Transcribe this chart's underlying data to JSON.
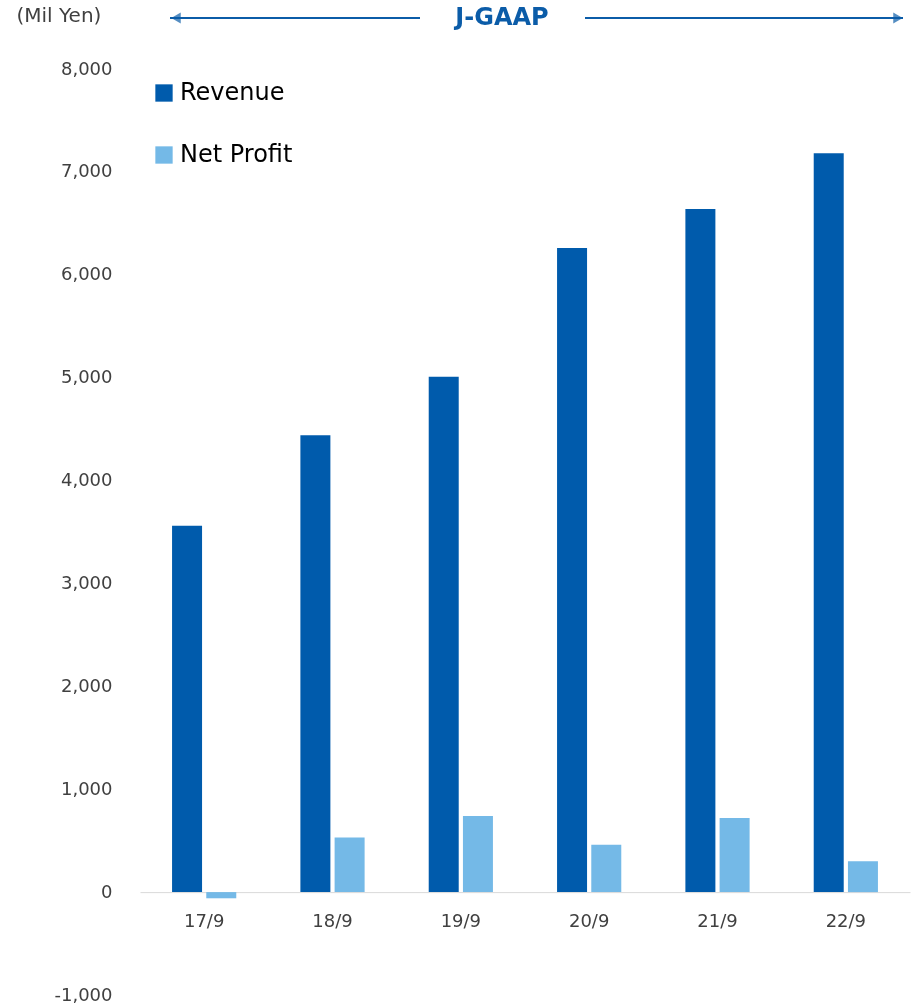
{
  "chart_data": {
    "type": "bar",
    "ylabel": "(Mil Yen)",
    "categories": [
      "17/9",
      "18/9",
      "19/9",
      "20/9",
      "21/9",
      "22/9"
    ],
    "series": [
      {
        "name": "Revenue",
        "color": "#005bac",
        "values": [
          3560,
          4440,
          5010,
          6260,
          6640,
          7180
        ]
      },
      {
        "name": "Net Profit",
        "color": "#74b9e7",
        "values": [
          -60,
          530,
          740,
          460,
          720,
          300
        ]
      }
    ],
    "ylim": [
      -1000,
      8000
    ],
    "yticks": [
      {
        "value": -1000,
        "label": "-1,000"
      },
      0,
      {
        "value": 1000,
        "label": "1,000"
      },
      {
        "value": 2000,
        "label": "2,000"
      },
      {
        "value": 3000,
        "label": "3,000"
      },
      {
        "value": 4000,
        "label": "4,000"
      },
      {
        "value": 5000,
        "label": "5,000"
      },
      {
        "value": 6000,
        "label": "6,000"
      },
      {
        "value": 7000,
        "label": "7,000"
      },
      {
        "value": 8000,
        "label": "8,000"
      }
    ],
    "grid": false,
    "legend": "top left",
    "annotations": [
      "J-GAAP"
    ]
  }
}
